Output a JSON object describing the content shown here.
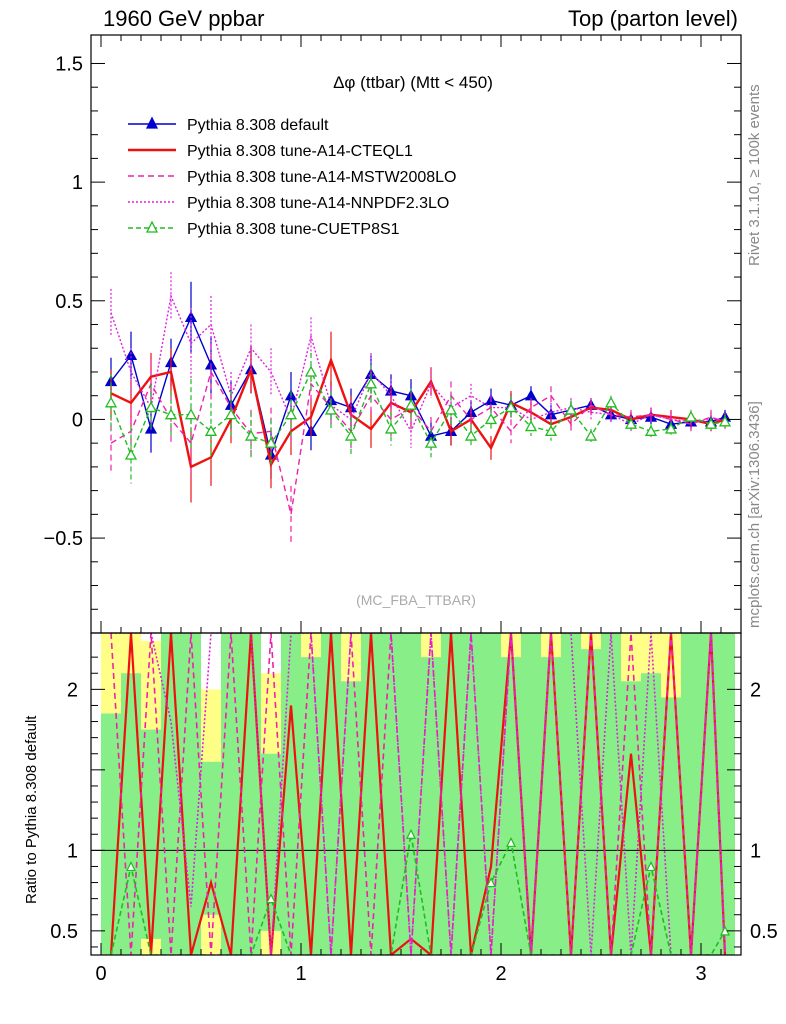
{
  "header": {
    "left": "1960 GeV ppbar",
    "right": "Top (parton level)"
  },
  "side_labels": {
    "rivet": "Rivet 3.1.10, ≥ 100k events",
    "mcplots": "mcplots.cern.ch [arXiv:1306.3436]"
  },
  "plot_title": "Δφ (ttbar) (Mtt < 450)",
  "watermark": "(MC_FBA_TTBAR)",
  "ratio_ylabel": "Ratio to Pythia 8.308 default",
  "colors": {
    "default": "#0000cc",
    "cteql1": "#ee1111",
    "mstw": "#ee22aa",
    "nnpdf": "#dd22dd",
    "cuetp8s1": "#22bb22",
    "band_yellow": "#ffff88",
    "band_green": "#88ee88"
  },
  "chart_data": {
    "type": "line",
    "xlim": [
      -0.05,
      3.2
    ],
    "ylim_main": [
      -0.9,
      1.62
    ],
    "ylim_ratio": [
      0.35,
      2.35
    ],
    "x_ticks": [
      {
        "v": 0,
        "label": "0"
      },
      {
        "v": 1,
        "label": "1"
      },
      {
        "v": 2,
        "label": "2"
      },
      {
        "v": 3,
        "label": "3"
      }
    ],
    "y_ticks_main": [
      {
        "v": -0.5,
        "label": "−0.5"
      },
      {
        "v": 0,
        "label": "0"
      },
      {
        "v": 0.5,
        "label": "0.5"
      },
      {
        "v": 1,
        "label": "1"
      },
      {
        "v": 1.5,
        "label": "1.5"
      }
    ],
    "y_ticks_ratio": [
      {
        "v": 0.5,
        "label": "0.5"
      },
      {
        "v": 1,
        "label": "1"
      },
      {
        "v": 2,
        "label": "2"
      }
    ],
    "x": [
      0.05,
      0.15,
      0.25,
      0.35,
      0.45,
      0.55,
      0.65,
      0.75,
      0.85,
      0.95,
      1.05,
      1.15,
      1.25,
      1.35,
      1.45,
      1.55,
      1.65,
      1.75,
      1.85,
      1.95,
      2.05,
      2.15,
      2.25,
      2.35,
      2.45,
      2.55,
      2.65,
      2.75,
      2.85,
      2.95,
      3.05,
      3.12
    ],
    "series": [
      {
        "key": "default",
        "name": "Pythia 8.308 default",
        "style": "solid-tri",
        "y": [
          0.16,
          0.27,
          -0.04,
          0.24,
          0.43,
          0.23,
          0.06,
          0.21,
          -0.15,
          0.1,
          -0.05,
          0.08,
          0.05,
          0.19,
          0.12,
          0.1,
          -0.07,
          -0.05,
          0.03,
          0.08,
          0.06,
          0.1,
          0.02,
          0.04,
          0.06,
          0.02,
          0.0,
          0.01,
          -0.02,
          -0.01,
          -0.01,
          0.01
        ],
        "err": [
          0.1,
          0.1,
          0.1,
          0.1,
          0.15,
          0.12,
          0.1,
          0.1,
          0.1,
          0.1,
          0.08,
          0.08,
          0.08,
          0.08,
          0.07,
          0.07,
          0.06,
          0.06,
          0.05,
          0.05,
          0.05,
          0.04,
          0.04,
          0.04,
          0.03,
          0.03,
          0.03,
          0.03,
          0.03,
          0.03,
          0.03,
          0.03
        ]
      },
      {
        "key": "cteql1",
        "name": "Pythia 8.308 tune-A14-CTEQL1",
        "style": "solid",
        "y": [
          0.11,
          0.07,
          0.18,
          0.2,
          -0.2,
          -0.16,
          0.0,
          0.21,
          -0.19,
          -0.05,
          0.01,
          0.25,
          0.02,
          -0.04,
          0.07,
          0.03,
          0.16,
          -0.05,
          0.0,
          -0.12,
          0.07,
          0.03,
          -0.02,
          0.01,
          0.05,
          0.04,
          0.0,
          0.02,
          0.01,
          0.0,
          -0.02,
          0.0
        ],
        "err": [
          0.1,
          0.1,
          0.1,
          0.1,
          0.15,
          0.12,
          0.1,
          0.1,
          0.1,
          0.1,
          0.08,
          0.12,
          0.08,
          0.08,
          0.07,
          0.07,
          0.06,
          0.06,
          0.05,
          0.05,
          0.05,
          0.04,
          0.04,
          0.04,
          0.03,
          0.03,
          0.03,
          0.03,
          0.03,
          0.03,
          0.03,
          0.03
        ]
      },
      {
        "key": "mstw",
        "name": "Pythia 8.308 tune-A14-MSTW2008LO",
        "style": "dashed",
        "y": [
          -0.1,
          -0.05,
          0.15,
          0.0,
          -0.1,
          0.2,
          0.05,
          -0.06,
          -0.05,
          -0.4,
          0.15,
          0.05,
          -0.05,
          0.1,
          0.0,
          0.05,
          -0.05,
          0.1,
          0.0,
          0.05,
          -0.05,
          0.05,
          0.1,
          -0.02,
          0.06,
          0.02,
          0.01,
          0.02,
          0.0,
          -0.02,
          0.01,
          -0.01
        ],
        "err": [
          0.12,
          0.1,
          0.1,
          0.1,
          0.15,
          0.12,
          0.1,
          0.1,
          0.1,
          0.12,
          0.08,
          0.08,
          0.08,
          0.08,
          0.07,
          0.07,
          0.06,
          0.06,
          0.05,
          0.05,
          0.05,
          0.04,
          0.04,
          0.04,
          0.03,
          0.03,
          0.03,
          0.03,
          0.03,
          0.03,
          0.03,
          0.03
        ]
      },
      {
        "key": "nnpdf",
        "name": "Pythia 8.308 tune-A14-NNPDF2.3LO",
        "style": "dotted",
        "y": [
          0.45,
          0.2,
          0.05,
          0.52,
          0.32,
          0.4,
          0.1,
          0.3,
          0.2,
          0.0,
          0.35,
          0.06,
          0.0,
          0.2,
          0.1,
          -0.05,
          0.15,
          0.05,
          0.1,
          0.05,
          0.05,
          0.0,
          0.03,
          0.05,
          0.03,
          0.02,
          -0.02,
          0.02,
          0.0,
          -0.01,
          0.0,
          0.0
        ],
        "err": [
          0.1,
          0.1,
          0.1,
          0.1,
          0.15,
          0.12,
          0.1,
          0.1,
          0.1,
          0.1,
          0.08,
          0.08,
          0.08,
          0.08,
          0.07,
          0.07,
          0.06,
          0.06,
          0.05,
          0.05,
          0.05,
          0.04,
          0.04,
          0.04,
          0.03,
          0.03,
          0.03,
          0.03,
          0.03,
          0.03,
          0.03,
          0.03
        ]
      },
      {
        "key": "cuetp8s1",
        "name": "Pythia 8.308 tune-CUETP8S1",
        "style": "dashed-otri",
        "y": [
          0.07,
          -0.15,
          0.05,
          0.02,
          0.02,
          -0.05,
          0.02,
          -0.07,
          -0.1,
          0.02,
          0.2,
          0.04,
          -0.07,
          0.15,
          -0.04,
          0.06,
          -0.1,
          0.04,
          -0.07,
          0.0,
          0.05,
          -0.03,
          -0.05,
          0.04,
          -0.07,
          0.07,
          -0.02,
          -0.05,
          -0.04,
          0.01,
          -0.02,
          -0.01
        ],
        "err": [
          0.12,
          0.12,
          0.1,
          0.1,
          0.15,
          0.12,
          0.1,
          0.1,
          0.1,
          0.1,
          0.08,
          0.08,
          0.08,
          0.08,
          0.07,
          0.07,
          0.06,
          0.06,
          0.05,
          0.05,
          0.05,
          0.04,
          0.04,
          0.04,
          0.03,
          0.03,
          0.03,
          0.03,
          0.03,
          0.03,
          0.03,
          0.03
        ]
      }
    ],
    "ratio_band": {
      "x": [
        0.05,
        0.15,
        0.25,
        0.35,
        0.45,
        0.55,
        0.65,
        0.75,
        0.85,
        0.95,
        1.05,
        1.15,
        1.25,
        1.35,
        1.45,
        1.55,
        1.65,
        1.75,
        1.85,
        1.95,
        2.05,
        2.15,
        2.25,
        2.35,
        2.45,
        2.55,
        2.65,
        2.75,
        2.85,
        2.95,
        3.05,
        3.12
      ],
      "yellow_lo": [
        0.35,
        0.35,
        0.35,
        0.35,
        0.35,
        0.35,
        0.35,
        0.35,
        0.35,
        0.35,
        0.35,
        0.35,
        0.35,
        0.35,
        0.35,
        0.35,
        0.35,
        0.35,
        0.35,
        0.35,
        0.35,
        0.35,
        0.35,
        0.35,
        0.35,
        0.35,
        0.35,
        0.35,
        0.35,
        0.35,
        0.35,
        0.35
      ],
      "yellow_hi": [
        2.35,
        2.35,
        2.3,
        2.35,
        2.35,
        2.0,
        2.35,
        2.35,
        2.1,
        2.35,
        2.35,
        2.35,
        2.35,
        2.35,
        2.35,
        2.35,
        2.35,
        2.35,
        2.35,
        2.35,
        2.35,
        2.35,
        2.35,
        2.35,
        2.35,
        2.35,
        2.35,
        2.35,
        2.35,
        2.35,
        2.35,
        2.35
      ],
      "green_lo": [
        0.35,
        0.35,
        0.45,
        0.35,
        0.35,
        0.6,
        0.35,
        0.35,
        0.5,
        0.35,
        0.35,
        0.35,
        0.35,
        0.35,
        0.35,
        0.35,
        0.35,
        0.35,
        0.35,
        0.35,
        0.35,
        0.35,
        0.35,
        0.35,
        0.35,
        0.35,
        0.35,
        0.35,
        0.35,
        0.35,
        0.35,
        0.35
      ],
      "green_hi": [
        1.85,
        2.1,
        1.75,
        2.35,
        2.35,
        1.55,
        2.35,
        2.35,
        1.6,
        2.35,
        2.2,
        2.35,
        2.05,
        2.35,
        2.35,
        2.35,
        2.2,
        2.35,
        2.35,
        2.35,
        2.2,
        2.35,
        2.2,
        2.35,
        2.25,
        2.35,
        2.05,
        2.1,
        1.95,
        2.35,
        2.35,
        2.35
      ]
    },
    "ratio_series": [
      {
        "key": "cteql1",
        "y": [
          0.35,
          2.35,
          0.35,
          2.35,
          0.35,
          0.8,
          0.35,
          2.35,
          0.35,
          1.9,
          0.35,
          2.35,
          0.35,
          2.35,
          0.35,
          0.45,
          0.35,
          2.35,
          0.35,
          0.9,
          2.35,
          0.35,
          2.35,
          0.35,
          2.35,
          0.35,
          1.6,
          0.35,
          2.35,
          0.35,
          2.35,
          0.35
        ]
      },
      {
        "key": "mstw",
        "y": [
          2.35,
          0.35,
          2.35,
          0.35,
          2.35,
          0.35,
          2.35,
          0.35,
          2.35,
          0.35,
          2.35,
          0.35,
          2.35,
          0.35,
          2.35,
          0.35,
          2.35,
          0.35,
          2.35,
          0.35,
          2.35,
          0.35,
          2.35,
          0.35,
          2.35,
          0.35,
          2.35,
          0.35,
          2.35,
          0.35,
          2.35,
          0.35
        ]
      },
      {
        "key": "nnpdf",
        "y": [
          2.35,
          2.35,
          2.35,
          1.8,
          0.65,
          2.35,
          2.35,
          2.35,
          0.35,
          2.35,
          2.35,
          0.35,
          2.35,
          2.35,
          2.35,
          0.35,
          2.35,
          0.35,
          2.35,
          0.35,
          2.35,
          0.35,
          2.35,
          2.35,
          0.35,
          2.35,
          0.35,
          2.35,
          0.35,
          0.35,
          2.35,
          0.35
        ]
      },
      {
        "key": "cuetp8s1",
        "y": [
          0.35,
          0.9,
          0.35,
          0.35,
          0.35,
          0.35,
          0.35,
          0.35,
          0.7,
          0.35,
          0.35,
          0.35,
          0.35,
          0.35,
          0.35,
          1.1,
          0.35,
          0.35,
          0.35,
          0.8,
          1.05,
          0.35,
          0.35,
          0.35,
          0.35,
          0.35,
          0.35,
          0.9,
          0.35,
          0.35,
          0.35,
          0.5
        ]
      }
    ]
  }
}
